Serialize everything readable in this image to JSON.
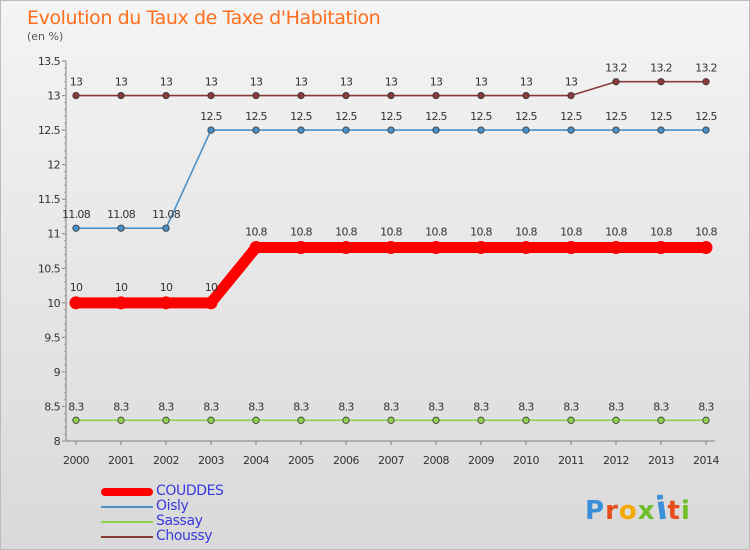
{
  "title": "Evolution du Taux de Taxe d'Habitation",
  "subtitle": "(en %)",
  "colors": {
    "couddes": "#ff0000",
    "oisly": "#4a90c8",
    "sassay": "#8fd14f",
    "choussy": "#8b3a3a",
    "title": "#ff6e1c",
    "legend_text": "#3a3adf"
  },
  "chart_data": {
    "type": "line",
    "title": "Evolution du Taux de Taxe d'Habitation",
    "ylabel": "(en %)",
    "xlabel": "",
    "x": [
      "2000",
      "2001",
      "2002",
      "2003",
      "2004",
      "2005",
      "2006",
      "2007",
      "2008",
      "2009",
      "2010",
      "2011",
      "2012",
      "2013",
      "2014"
    ],
    "ylim": [
      8,
      13.5
    ],
    "yticks": [
      "8",
      "8.5",
      "9",
      "9.5",
      "10",
      "10.5",
      "11",
      "11.5",
      "12",
      "12.5",
      "13",
      "13.5"
    ],
    "grid": false,
    "legend_position": "bottom-left",
    "series": [
      {
        "name": "COUDDES",
        "color": "#ff0000",
        "values": [
          10,
          10,
          10,
          10,
          10.8,
          10.8,
          10.8,
          10.8,
          10.8,
          10.8,
          10.8,
          10.8,
          10.8,
          10.8,
          10.8
        ],
        "labels": [
          "10",
          "10",
          "10",
          "10",
          "10.8",
          "10.8",
          "10.8",
          "10.8",
          "10.8",
          "10.8",
          "10.8",
          "10.8",
          "10.8",
          "10.8",
          "10.8"
        ]
      },
      {
        "name": "Oisly",
        "color": "#4a90c8",
        "values": [
          11.08,
          11.08,
          11.08,
          12.5,
          12.5,
          12.5,
          12.5,
          12.5,
          12.5,
          12.5,
          12.5,
          12.5,
          12.5,
          12.5,
          12.5
        ],
        "labels": [
          "11.08",
          "11.08",
          "11.08",
          "12.5",
          "12.5",
          "12.5",
          "12.5",
          "12.5",
          "12.5",
          "12.5",
          "12.5",
          "12.5",
          "12.5",
          "12.5",
          "12.5"
        ]
      },
      {
        "name": "Sassay",
        "color": "#8fd14f",
        "values": [
          8.3,
          8.3,
          8.3,
          8.3,
          8.3,
          8.3,
          8.3,
          8.3,
          8.3,
          8.3,
          8.3,
          8.3,
          8.3,
          8.3,
          8.3
        ],
        "labels": [
          "8.3",
          "8.3",
          "8.3",
          "8.3",
          "8.3",
          "8.3",
          "8.3",
          "8.3",
          "8.3",
          "8.3",
          "8.3",
          "8.3",
          "8.3",
          "8.3",
          "8.3"
        ]
      },
      {
        "name": "Choussy",
        "color": "#8b3a3a",
        "values": [
          13,
          13,
          13,
          13,
          13,
          13,
          13,
          13,
          13,
          13,
          13,
          13,
          13.2,
          13.2,
          13.2
        ],
        "labels": [
          "13",
          "13",
          "13",
          "13",
          "13",
          "13",
          "13",
          "13",
          "13",
          "13",
          "13",
          "13",
          "13.2",
          "13.2",
          "13.2"
        ]
      }
    ]
  },
  "legend": [
    {
      "label": "COUDDES",
      "color": "#ff0000",
      "thick": true
    },
    {
      "label": "Oisly",
      "color": "#4a90c8",
      "thick": false
    },
    {
      "label": "Sassay",
      "color": "#8fd14f",
      "thick": false
    },
    {
      "label": "Choussy",
      "color": "#8b3a3a",
      "thick": false
    }
  ],
  "logo": {
    "text": "Proxiti",
    "letter_colors": [
      "#3a8fd6",
      "#e84d1c",
      "#f5a800",
      "#6fbf2a",
      "#3a8fd6",
      "#e84d1c",
      "#6fbf2a"
    ]
  }
}
